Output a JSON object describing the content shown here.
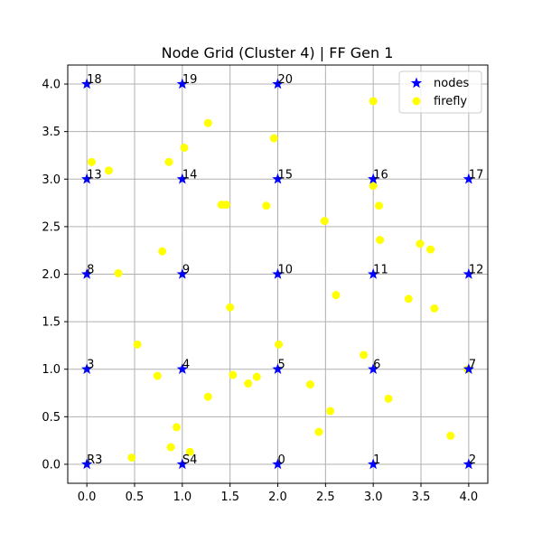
{
  "chart_data": {
    "type": "scatter",
    "title": "Node Grid (Cluster 4) | FF Gen 1",
    "xlabel": "",
    "ylabel": "",
    "xlim": [
      -0.2,
      4.2
    ],
    "ylim": [
      -0.2,
      4.2
    ],
    "grid": true,
    "legend_position": "top-right",
    "xticks": [
      0.0,
      0.5,
      1.0,
      1.5,
      2.0,
      2.5,
      3.0,
      3.5,
      4.0
    ],
    "yticks": [
      0.0,
      0.5,
      1.0,
      1.5,
      2.0,
      2.5,
      3.0,
      3.5,
      4.0
    ],
    "xtick_labels": [
      "0.0",
      "0.5",
      "1.0",
      "1.5",
      "2.0",
      "2.5",
      "3.0",
      "3.5",
      "4.0"
    ],
    "ytick_labels": [
      "0.0",
      "0.5",
      "1.0",
      "1.5",
      "2.0",
      "2.5",
      "3.0",
      "3.5",
      "4.0"
    ],
    "series": [
      {
        "name": "nodes",
        "marker": "star",
        "color": "#0000ff",
        "points": [
          {
            "x": 0,
            "y": 0,
            "label": "R3"
          },
          {
            "x": 1,
            "y": 0,
            "label": "S4"
          },
          {
            "x": 2,
            "y": 0,
            "label": "0"
          },
          {
            "x": 3,
            "y": 0,
            "label": "1"
          },
          {
            "x": 4,
            "y": 0,
            "label": "2"
          },
          {
            "x": 0,
            "y": 1,
            "label": "3"
          },
          {
            "x": 1,
            "y": 1,
            "label": "4"
          },
          {
            "x": 2,
            "y": 1,
            "label": "5"
          },
          {
            "x": 3,
            "y": 1,
            "label": "6"
          },
          {
            "x": 4,
            "y": 1,
            "label": "7"
          },
          {
            "x": 0,
            "y": 2,
            "label": "8"
          },
          {
            "x": 1,
            "y": 2,
            "label": "9"
          },
          {
            "x": 2,
            "y": 2,
            "label": "10"
          },
          {
            "x": 3,
            "y": 2,
            "label": "11"
          },
          {
            "x": 4,
            "y": 2,
            "label": "12"
          },
          {
            "x": 0,
            "y": 3,
            "label": "13"
          },
          {
            "x": 1,
            "y": 3,
            "label": "14"
          },
          {
            "x": 2,
            "y": 3,
            "label": "15"
          },
          {
            "x": 3,
            "y": 3,
            "label": "16"
          },
          {
            "x": 4,
            "y": 3,
            "label": "17"
          },
          {
            "x": 0,
            "y": 4,
            "label": "18"
          },
          {
            "x": 1,
            "y": 4,
            "label": "19"
          },
          {
            "x": 2,
            "y": 4,
            "label": "20"
          }
        ]
      },
      {
        "name": "firefly",
        "marker": "circle",
        "color": "#ffff00",
        "points": [
          {
            "x": 0.05,
            "y": 3.18
          },
          {
            "x": 0.23,
            "y": 3.09
          },
          {
            "x": 0.33,
            "y": 2.01
          },
          {
            "x": 0.53,
            "y": 1.26
          },
          {
            "x": 0.47,
            "y": 0.07
          },
          {
            "x": 0.74,
            "y": 0.93
          },
          {
            "x": 0.79,
            "y": 2.24
          },
          {
            "x": 0.86,
            "y": 3.18
          },
          {
            "x": 0.88,
            "y": 0.18
          },
          {
            "x": 0.94,
            "y": 0.39
          },
          {
            "x": 1.02,
            "y": 3.33
          },
          {
            "x": 1.08,
            "y": 0.13
          },
          {
            "x": 1.27,
            "y": 3.59
          },
          {
            "x": 1.27,
            "y": 0.71
          },
          {
            "x": 1.41,
            "y": 2.73
          },
          {
            "x": 1.46,
            "y": 2.73
          },
          {
            "x": 1.5,
            "y": 1.65
          },
          {
            "x": 1.53,
            "y": 0.94
          },
          {
            "x": 1.69,
            "y": 0.85
          },
          {
            "x": 1.78,
            "y": 0.92
          },
          {
            "x": 1.88,
            "y": 2.72
          },
          {
            "x": 1.96,
            "y": 3.43
          },
          {
            "x": 2.01,
            "y": 1.26
          },
          {
            "x": 2.34,
            "y": 0.84
          },
          {
            "x": 2.43,
            "y": 0.34
          },
          {
            "x": 2.49,
            "y": 2.56
          },
          {
            "x": 2.55,
            "y": 0.56
          },
          {
            "x": 2.61,
            "y": 1.78
          },
          {
            "x": 2.9,
            "y": 1.15
          },
          {
            "x": 3.0,
            "y": 3.82
          },
          {
            "x": 3.0,
            "y": 2.93
          },
          {
            "x": 3.06,
            "y": 2.72
          },
          {
            "x": 3.07,
            "y": 2.36
          },
          {
            "x": 3.16,
            "y": 0.69
          },
          {
            "x": 3.37,
            "y": 1.74
          },
          {
            "x": 3.49,
            "y": 2.32
          },
          {
            "x": 3.6,
            "y": 2.26
          },
          {
            "x": 3.64,
            "y": 1.64
          },
          {
            "x": 3.81,
            "y": 0.3
          },
          {
            "x": 3.99,
            "y": 1.0
          }
        ]
      }
    ]
  }
}
